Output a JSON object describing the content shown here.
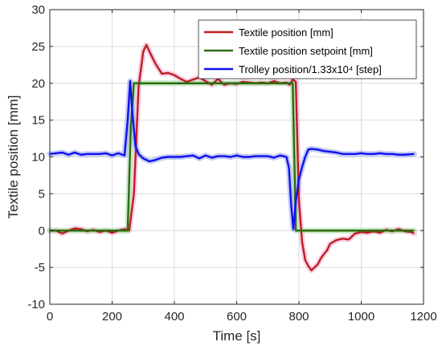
{
  "chart_data": {
    "type": "line",
    "xlabel": "Time [s]",
    "ylabel": "Textile position [mm]",
    "xlim": [
      0,
      1200
    ],
    "ylim": [
      -10,
      30
    ],
    "x_ticks": [
      0,
      200,
      400,
      600,
      800,
      1000,
      1200
    ],
    "y_ticks": [
      -10,
      -5,
      0,
      5,
      10,
      15,
      20,
      25,
      30
    ],
    "grid": true,
    "legend_position": "top-right",
    "series": [
      {
        "name": "Textile position [mm]",
        "color": "#bb1f1f",
        "shadow_color": "#f6b1d9",
        "x": [
          0,
          20,
          40,
          60,
          80,
          100,
          120,
          140,
          160,
          180,
          200,
          220,
          240,
          255,
          270,
          285,
          300,
          310,
          320,
          340,
          360,
          380,
          400,
          420,
          440,
          460,
          480,
          500,
          520,
          540,
          560,
          580,
          600,
          620,
          640,
          660,
          680,
          700,
          720,
          740,
          760,
          770,
          780,
          790,
          800,
          810,
          820,
          830,
          840,
          850,
          860,
          870,
          880,
          890,
          900,
          920,
          940,
          960,
          980,
          1000,
          1020,
          1040,
          1060,
          1080,
          1100,
          1120,
          1140,
          1160,
          1170
        ],
        "y": [
          0,
          0,
          -0.4,
          0,
          0.3,
          0.2,
          -0.1,
          0.1,
          -0.2,
          0,
          -0.3,
          0,
          0.2,
          0,
          5,
          19.5,
          24.3,
          25.2,
          24.3,
          22.6,
          21.3,
          21.4,
          21.1,
          20.6,
          20.2,
          20.5,
          20.8,
          20.3,
          19.8,
          20.6,
          19.8,
          20,
          19.9,
          20.2,
          20.1,
          20,
          20.1,
          20,
          20.3,
          20,
          20.1,
          19.8,
          20.5,
          20.2,
          4,
          -1.5,
          -4,
          -4.8,
          -5.4,
          -5,
          -4.6,
          -3.8,
          -3.2,
          -2.7,
          -1.8,
          -1.3,
          -1.1,
          -1.2,
          -0.4,
          -0.2,
          -0.3,
          -0.1,
          -0.3,
          0.1,
          -0.1,
          0.2,
          -0.1,
          -0.2,
          -0.4
        ]
      },
      {
        "name": "Textile position setpoint [mm]",
        "color": "#2e6b12",
        "shadow_color": "#a7d9a1",
        "x": [
          0,
          240,
          250,
          260,
          270,
          770,
          780,
          790,
          800,
          1170
        ],
        "y": [
          0,
          0,
          0,
          14,
          20,
          20,
          20,
          0,
          0,
          0
        ]
      },
      {
        "name": "Trolley position/1.33x10⁴ [step]",
        "color": "#1010ee",
        "shadow_color": "#9da7f2",
        "x": [
          0,
          20,
          40,
          60,
          80,
          100,
          120,
          140,
          160,
          180,
          200,
          220,
          240,
          250,
          258,
          265,
          275,
          285,
          300,
          320,
          340,
          360,
          380,
          400,
          420,
          440,
          460,
          480,
          500,
          520,
          540,
          560,
          580,
          600,
          620,
          640,
          660,
          680,
          700,
          720,
          740,
          760,
          768,
          775,
          782,
          790,
          800,
          810,
          820,
          830,
          840,
          860,
          880,
          900,
          920,
          940,
          960,
          980,
          1000,
          1020,
          1040,
          1060,
          1080,
          1100,
          1120,
          1140,
          1170
        ],
        "y": [
          10.4,
          10.5,
          10.6,
          10.3,
          10.6,
          10.3,
          10.4,
          10.4,
          10.4,
          10.5,
          10.2,
          10.5,
          10.2,
          15,
          20.3,
          16,
          11.5,
          10.4,
          9.8,
          9.4,
          9.6,
          9.9,
          10,
          10,
          10,
          10.1,
          10.2,
          9.8,
          10.2,
          9.9,
          10.1,
          10.1,
          10,
          10.2,
          10,
          10,
          10.1,
          10.1,
          10.1,
          9.9,
          10.2,
          10,
          8.5,
          3.5,
          0.2,
          4,
          7,
          8.6,
          10,
          11,
          11.1,
          11,
          10.8,
          10.7,
          10.6,
          10.4,
          10.4,
          10.4,
          10.5,
          10.4,
          10.4,
          10.5,
          10.4,
          10.4,
          10.3,
          10.3,
          10.4
        ]
      }
    ]
  }
}
